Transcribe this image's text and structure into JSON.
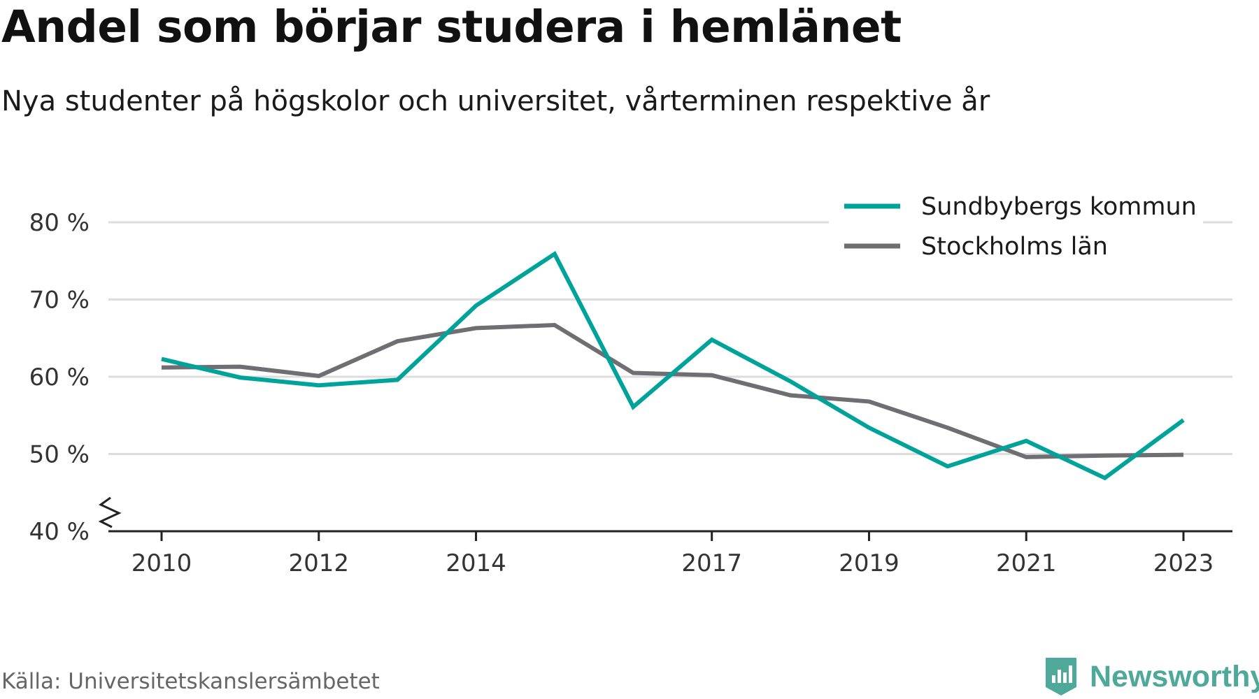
{
  "title": "Andel som börjar studera i hemlänet",
  "subtitle": "Nya studenter på högskolor och universitet, vårterminen respektive år",
  "source": "Källa: Universitetskanslersämbetet",
  "brand": {
    "name": "Newsworthy",
    "logo_icon": "newsworthy-logo-icon",
    "color": "#4fa99a"
  },
  "colors": {
    "grid": "#dddddd",
    "axis": "#222222",
    "tick_text": "#333333"
  },
  "chart_data": {
    "type": "line",
    "title": "Andel som börjar studera i hemlänet",
    "subtitle": "Nya studenter på högskolor och universitet, vårterminen respektive år",
    "x": [
      2010,
      2011,
      2012,
      2013,
      2014,
      2015,
      2016,
      2017,
      2018,
      2019,
      2020,
      2021,
      2022,
      2023
    ],
    "x_ticks": [
      2010,
      2012,
      2014,
      2017,
      2019,
      2021,
      2023
    ],
    "x_tick_labels": [
      "2010",
      "2012",
      "2014",
      "2017",
      "2019",
      "2021",
      "2023"
    ],
    "ylim": [
      40,
      80
    ],
    "y_ticks": [
      40,
      50,
      60,
      70,
      80
    ],
    "y_tick_labels": [
      "40 %",
      "50 %",
      "60 %",
      "70 %",
      "80 %"
    ],
    "y_axis_break": true,
    "grid": true,
    "legend_position": "top-right",
    "series": [
      {
        "name": "Sundbybergs kommun",
        "color": "#00a39a",
        "values": [
          62.3,
          59.9,
          58.9,
          59.6,
          69.2,
          75.9,
          56.1,
          64.8,
          59.4,
          53.4,
          48.4,
          51.7,
          46.9,
          54.4
        ]
      },
      {
        "name": "Stockholms län",
        "color": "#6e6e73",
        "values": [
          61.2,
          61.3,
          60.1,
          64.6,
          66.3,
          66.7,
          60.5,
          60.2,
          57.6,
          56.8,
          53.4,
          49.6,
          49.8,
          49.9
        ]
      }
    ]
  }
}
